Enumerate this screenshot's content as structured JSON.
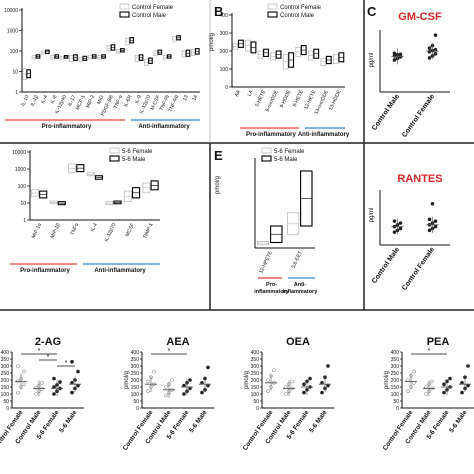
{
  "colors": {
    "pro": "#e0403c",
    "anti": "#2f8fd8",
    "title_red": "#d9262a",
    "female_box": "#bbbbbb",
    "male_box": "#000000"
  },
  "panels": {
    "A": {
      "letter": "",
      "legend": [
        "Control Female",
        "Control Male"
      ],
      "group_pro": "Pro-inflammatory",
      "group_anti": "Anti-inflammatory"
    },
    "B": {
      "letter": "B",
      "ylabel": "pmol/g",
      "legend": [
        "Control Female",
        "Control Male"
      ],
      "group_pro": "Pro-inflammatory",
      "group_anti": "Anti-inflammatory"
    },
    "C": {
      "letter": "C",
      "title1": "GM-CSF",
      "title2": "RANTES",
      "ylabel": "pg/ml"
    },
    "D": {
      "legend": [
        "5-6 Female",
        "5-6 Male"
      ],
      "group_pro": "Pro-inflammatory",
      "group_anti": "Anti-inflammatory"
    },
    "E": {
      "letter": "E",
      "ylabel": "pmol/g",
      "legend": [
        "5-6 Female",
        "5-6 Male"
      ],
      "group_pro": "Pro-\ninflammatory",
      "group_anti": "Anti-\ninflammatory"
    },
    "F": {
      "ylabel": "pmol/g"
    }
  },
  "chart_data": [
    {
      "id": "A",
      "type": "box",
      "yscale": "log",
      "yticks": [
        "10000",
        "1000",
        "100",
        "10",
        "1"
      ],
      "categories": [
        "IL-10",
        "IL-1β",
        "IL-4",
        "IL-6",
        "IL-12p40",
        "IL-17",
        "MCP-1",
        "MIP-2",
        "MIG",
        "PDGF-BB",
        "TNF-α",
        "IL-6R",
        "IL-9",
        "IL-12p70",
        "M-CSF",
        "TNF-RI",
        "TNF-RII",
        "13",
        "14"
      ],
      "series": [
        {
          "name": "Control Female",
          "boxes": [
            [
              4,
              14
            ],
            [
              40,
              60
            ],
            [
              70,
              100
            ],
            [
              40,
              60
            ],
            [
              40,
              55
            ],
            [
              30,
              60
            ],
            [
              30,
              50
            ],
            [
              40,
              60
            ],
            [
              40,
              60
            ],
            [
              100,
              180
            ],
            [
              80,
              120
            ],
            [
              200,
              400
            ],
            [
              30,
              60
            ],
            [
              20,
              40
            ],
            [
              60,
              100
            ],
            [
              40,
              60
            ],
            [
              300,
              500
            ],
            [
              50,
              100
            ],
            [
              60,
              120
            ]
          ]
        },
        {
          "name": "Control Male",
          "boxes": [
            [
              5,
              12
            ],
            [
              45,
              65
            ],
            [
              75,
              110
            ],
            [
              45,
              65
            ],
            [
              45,
              60
            ],
            [
              35,
              65
            ],
            [
              35,
              55
            ],
            [
              45,
              65
            ],
            [
              45,
              65
            ],
            [
              110,
              200
            ],
            [
              90,
              130
            ],
            [
              250,
              450
            ],
            [
              35,
              65
            ],
            [
              25,
              45
            ],
            [
              70,
              110
            ],
            [
              45,
              65
            ],
            [
              350,
              550
            ],
            [
              55,
              110
            ],
            [
              70,
              130
            ]
          ]
        }
      ]
    },
    {
      "id": "B",
      "type": "box",
      "yscale": "linear",
      "yticks": [
        "400",
        "300",
        "200",
        "100",
        "0"
      ],
      "ylim": [
        0,
        400
      ],
      "categories": [
        "AA",
        "LA",
        "5-HETE",
        "9-oxoODE",
        "9-HODE",
        "8-HETE",
        "12-HETE",
        "13-oxoODE",
        "13-HODE"
      ],
      "series": [
        {
          "name": "Control Female",
          "boxes": [
            [
              210,
              240
            ],
            [
              200,
              260
            ],
            [
              160,
              200
            ],
            [
              150,
              190
            ],
            [
              100,
              180
            ],
            [
              170,
              220
            ],
            [
              150,
              200
            ],
            [
              120,
              160
            ],
            [
              130,
              180
            ]
          ]
        },
        {
          "name": "Control Male",
          "boxes": [
            [
              220,
              260
            ],
            [
              190,
              250
            ],
            [
              170,
              210
            ],
            [
              160,
              200
            ],
            [
              110,
              190
            ],
            [
              180,
              230
            ],
            [
              160,
              210
            ],
            [
              130,
              170
            ],
            [
              140,
              190
            ]
          ]
        }
      ]
    },
    {
      "id": "C1",
      "type": "scatter",
      "title": "GM-CSF",
      "categories": [
        "Control Male",
        "Control Female"
      ],
      "ylim": [
        0,
        120
      ],
      "yticks": [],
      "points": [
        [
          62,
          65,
          68,
          70,
          72,
          73,
          75
        ],
        [
          66,
          70,
          74,
          78,
          80,
          82,
          85,
          90,
          110
        ]
      ],
      "means": [
        69,
        79
      ]
    },
    {
      "id": "C2",
      "type": "scatter",
      "title": "RANTES",
      "categories": [
        "Control Male",
        "Control Female"
      ],
      "ylim": [
        0,
        60
      ],
      "yticks": [],
      "points": [
        [
          14,
          16,
          18,
          20,
          22,
          24,
          26
        ],
        [
          16,
          18,
          20,
          22,
          24,
          26,
          28,
          45
        ]
      ],
      "means": [
        20,
        22
      ]
    },
    {
      "id": "D",
      "type": "box",
      "yscale": "log",
      "yticks": [
        "10000",
        "1000",
        "100",
        "10",
        "1"
      ],
      "categories": [
        "MIP-1α",
        "MIP-1β",
        "TNFα",
        "IL-4",
        "IL-12p70",
        "MCSF",
        "TIMP-1"
      ],
      "series": [
        {
          "name": "5-6 Female",
          "boxes": [
            [
              25,
              60
            ],
            [
              9,
              13
            ],
            [
              600,
              2000
            ],
            [
              400,
              600
            ],
            [
              8,
              12
            ],
            [
              12,
              50
            ],
            [
              40,
              150
            ]
          ]
        },
        {
          "name": "5-6 Male",
          "boxes": [
            [
              20,
              50
            ],
            [
              8,
              12
            ],
            [
              700,
              1800
            ],
            [
              250,
              400
            ],
            [
              9,
              13
            ],
            [
              20,
              80
            ],
            [
              60,
              200
            ]
          ]
        }
      ]
    },
    {
      "id": "E",
      "type": "box",
      "yscale": "linear",
      "yticks": [],
      "ylim": [
        0,
        800
      ],
      "categories": [
        "12-HPETE",
        "5,6-EET"
      ],
      "series": [
        {
          "name": "5-6 Female",
          "boxes": [
            [
              30,
              60
            ],
            [
              120,
              320
            ]
          ]
        },
        {
          "name": "5-6 Male",
          "boxes": [
            [
              50,
              200
            ],
            [
              200,
              700
            ]
          ]
        }
      ]
    },
    {
      "id": "F1",
      "type": "scatter",
      "title": "2-AG",
      "ylim": [
        0,
        400
      ],
      "yticks": [
        "400",
        "350",
        "300",
        "250",
        "200",
        "150",
        "100",
        "50",
        "0"
      ],
      "categories": [
        "Control Female",
        "Control Male",
        "5-6 Female",
        "5-6 Male"
      ],
      "means": [
        190,
        140,
        140,
        170
      ],
      "points": [
        [
          110,
          150,
          170,
          190,
          210,
          260,
          300
        ],
        [
          100,
          120,
          135,
          145,
          160,
          180
        ],
        [
          100,
          120,
          140,
          150,
          165,
          185,
          210
        ],
        [
          110,
          140,
          160,
          180,
          200,
          260,
          330
        ]
      ],
      "sig": [
        [
          0,
          2,
          "*"
        ],
        [
          1,
          2,
          "*"
        ],
        [
          2,
          3,
          "*"
        ]
      ]
    },
    {
      "id": "F2",
      "type": "scatter",
      "title": "AEA",
      "ylim": [
        0,
        400
      ],
      "yticks": [
        "400",
        "350",
        "300",
        "250",
        "200",
        "150",
        "100",
        "50",
        "0"
      ],
      "categories": [
        "Control Female",
        "Control Male",
        "5-6 Female",
        "5-6 Male"
      ],
      "means": [
        170,
        130,
        150,
        170
      ],
      "points": [
        [
          120,
          150,
          170,
          190,
          220,
          260
        ],
        [
          90,
          110,
          130,
          150,
          170,
          200
        ],
        [
          100,
          120,
          140,
          160,
          180,
          200
        ],
        [
          110,
          130,
          160,
          180,
          210,
          290
        ]
      ],
      "sig": [
        [
          0,
          2,
          "*"
        ]
      ]
    },
    {
      "id": "F3",
      "type": "scatter",
      "title": "OEA",
      "ylim": [
        0,
        400
      ],
      "yticks": [
        "400",
        "350",
        "300",
        "250",
        "200",
        "150",
        "100",
        "50",
        "0"
      ],
      "categories": [
        "Control Female",
        "Control Male",
        "5-6 Female",
        "5-6 Male"
      ],
      "means": [
        180,
        140,
        150,
        170
      ],
      "points": [
        [
          120,
          150,
          180,
          200,
          230,
          270
        ],
        [
          100,
          120,
          140,
          150,
          170,
          190
        ],
        [
          110,
          130,
          150,
          170,
          190,
          210
        ],
        [
          110,
          140,
          160,
          180,
          220,
          300
        ]
      ],
      "sig": []
    },
    {
      "id": "F4",
      "type": "scatter",
      "title": "PEA",
      "ylim": [
        0,
        400
      ],
      "yticks": [
        "400",
        "350",
        "300",
        "250",
        "200",
        "150",
        "100",
        "50",
        "0"
      ],
      "categories": [
        "Control Female",
        "Control Male",
        "5-6 Female",
        "5-6 Male"
      ],
      "means": [
        190,
        140,
        150,
        170
      ],
      "points": [
        [
          120,
          150,
          180,
          200,
          230,
          260
        ],
        [
          100,
          120,
          140,
          150,
          170,
          190
        ],
        [
          110,
          130,
          150,
          170,
          190,
          210
        ],
        [
          110,
          140,
          160,
          180,
          220,
          300
        ]
      ],
      "sig": [
        [
          0,
          2,
          "*"
        ]
      ]
    }
  ]
}
